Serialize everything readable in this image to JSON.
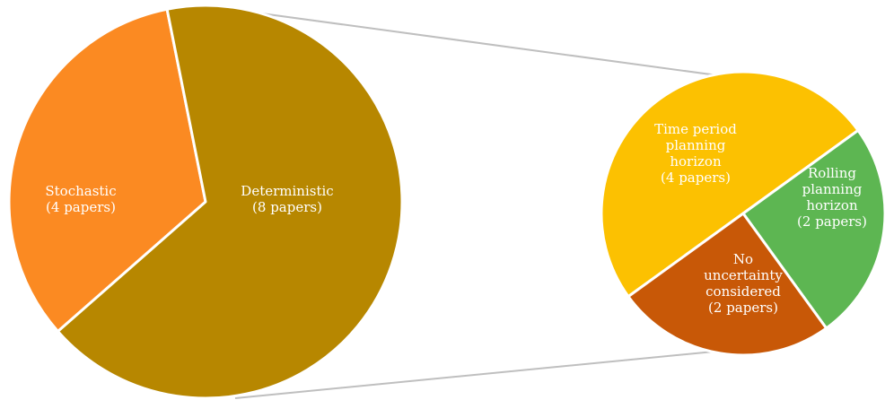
{
  "chart_data": {
    "type": "pie",
    "style": "pie-of-pie",
    "main_pie": {
      "slices": [
        {
          "label": "Stochastic",
          "sublabel": "(4 papers)",
          "value": 4,
          "color": "#fb8a22"
        },
        {
          "label": "Deterministic",
          "sublabel": "(8 papers)",
          "value": 8,
          "color": "#b78700"
        }
      ]
    },
    "secondary_pie": {
      "breakdown_of": "Deterministic",
      "slices": [
        {
          "lines": [
            "Time period",
            "planning",
            "horizon",
            "(4 papers)"
          ],
          "value": 4,
          "color": "#fcc101"
        },
        {
          "lines": [
            "Rolling",
            "planning",
            "horizon",
            "(2 papers)"
          ],
          "value": 2,
          "color": "#5db652"
        },
        {
          "lines": [
            "No",
            "uncertainty",
            "considered",
            "(2 papers)"
          ],
          "value": 2,
          "color": "#c85807"
        }
      ]
    },
    "connector_color": "#bfbfbf"
  }
}
